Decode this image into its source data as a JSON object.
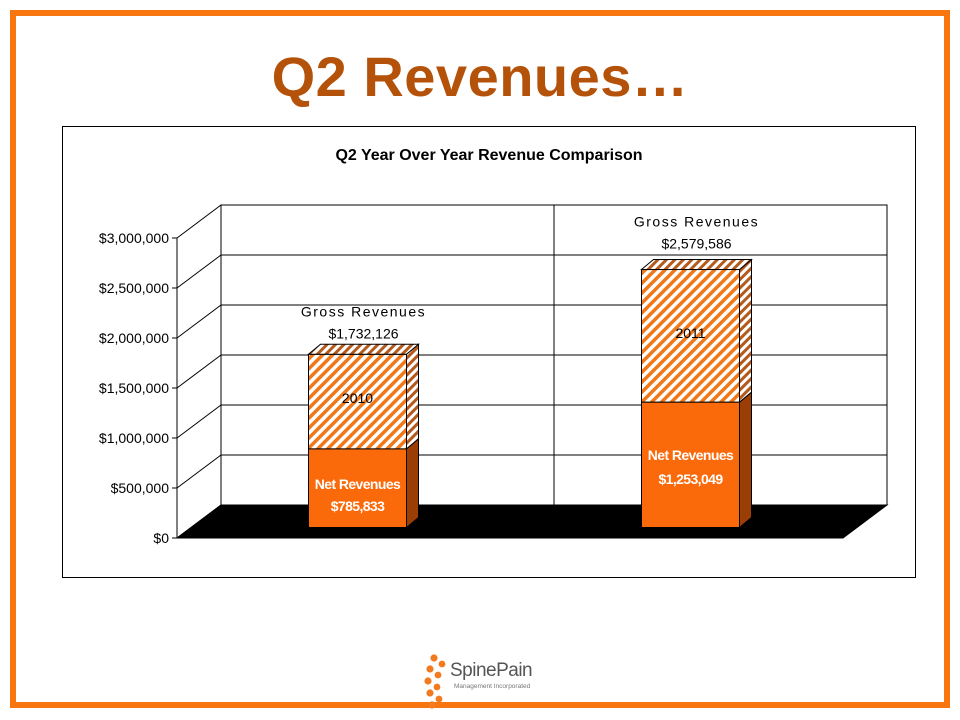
{
  "slide": {
    "title": "Q2 Revenues…"
  },
  "logo": {
    "name": "SpinePain",
    "tagline": "Management Incorporated"
  },
  "colors": {
    "frame": "#f7760f",
    "title": "#b5520a",
    "net": "#fb6a0a",
    "net_side": "#9a3e05",
    "hatch": "#f07818",
    "floor": "#000000"
  },
  "chart_data": {
    "type": "bar",
    "title": "Q2 Year Over Year Revenue Comparison",
    "categories": [
      "2010",
      "2011"
    ],
    "ylim": [
      0,
      3000000
    ],
    "y_ticks": [
      "$0",
      "$500,000",
      "$1,000,000",
      "$1,500,000",
      "$2,000,000",
      "$2,500,000",
      "$3,000,000"
    ],
    "grid": true,
    "style": "3d-stacked",
    "series": [
      {
        "name": "Net Revenues",
        "values": [
          785833,
          1253049
        ],
        "labels": [
          "$785,833",
          "$1,253,049"
        ],
        "fill": "solid"
      },
      {
        "name": "Gross Revenues",
        "values": [
          1732126,
          2579586
        ],
        "labels": [
          "$1,732,126",
          "$2,579,586"
        ],
        "fill": "hatched"
      }
    ]
  }
}
